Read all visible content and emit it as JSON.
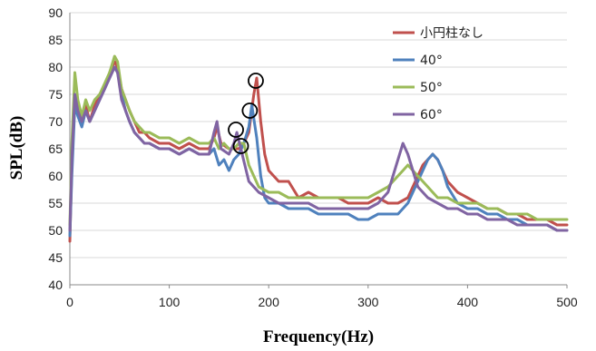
{
  "chart_data": {
    "type": "line",
    "title": "",
    "xlabel": "Frequency(Hz)",
    "ylabel": "SPL(dB)",
    "xlim": [
      0,
      500
    ],
    "ylim": [
      40,
      90
    ],
    "xticks": [
      0,
      100,
      200,
      300,
      400,
      500
    ],
    "yticks": [
      40,
      45,
      50,
      55,
      60,
      65,
      70,
      75,
      80,
      85,
      90
    ],
    "grid": "horizontal",
    "legend_position": "top-right",
    "series": [
      {
        "name": "小円柱なし",
        "color": "#c0504d",
        "x": [
          0,
          2,
          5,
          8,
          12,
          16,
          20,
          25,
          30,
          35,
          40,
          45,
          48,
          52,
          56,
          60,
          65,
          70,
          75,
          80,
          90,
          100,
          110,
          120,
          130,
          140,
          145,
          148,
          152,
          160,
          170,
          175,
          180,
          185,
          188,
          192,
          196,
          200,
          205,
          210,
          220,
          230,
          240,
          250,
          260,
          270,
          280,
          290,
          300,
          310,
          320,
          330,
          340,
          345,
          350,
          355,
          360,
          365,
          370,
          375,
          380,
          390,
          400,
          410,
          420,
          430,
          440,
          450,
          460,
          470,
          480,
          490,
          500
        ],
        "y": [
          48,
          62,
          74,
          72,
          70,
          73,
          70,
          73,
          75,
          76,
          79,
          81,
          80,
          76,
          74,
          72,
          70,
          68,
          68,
          67,
          66,
          66,
          65,
          66,
          65,
          65,
          67,
          69,
          66,
          65,
          65,
          66,
          68,
          75,
          78,
          70,
          64,
          61,
          60,
          59,
          59,
          56,
          57,
          56,
          56,
          56,
          55,
          55,
          55,
          56,
          55,
          55,
          56,
          58,
          60,
          62,
          63,
          64,
          63,
          61,
          59,
          57,
          56,
          55,
          54,
          54,
          53,
          53,
          52,
          52,
          52,
          51,
          51
        ]
      },
      {
        "name": "40°",
        "color": "#4f81bd",
        "x": [
          0,
          2,
          5,
          8,
          12,
          16,
          20,
          25,
          30,
          35,
          40,
          45,
          48,
          52,
          56,
          60,
          65,
          70,
          75,
          80,
          90,
          100,
          110,
          120,
          130,
          140,
          145,
          150,
          155,
          160,
          165,
          170,
          175,
          180,
          183,
          188,
          192,
          196,
          200,
          210,
          220,
          230,
          240,
          250,
          260,
          270,
          280,
          290,
          300,
          310,
          320,
          330,
          340,
          345,
          350,
          355,
          360,
          365,
          370,
          375,
          380,
          390,
          400,
          410,
          420,
          430,
          440,
          450,
          460,
          470,
          480,
          490,
          500
        ],
        "y": [
          49,
          60,
          73,
          71,
          69,
          72,
          70,
          72,
          74,
          76,
          78,
          80,
          79,
          75,
          72,
          70,
          68,
          67,
          66,
          66,
          65,
          65,
          64,
          65,
          64,
          64,
          65,
          62,
          63,
          61,
          63,
          64,
          66,
          69,
          73,
          67,
          60,
          56,
          55,
          55,
          54,
          54,
          54,
          53,
          53,
          53,
          53,
          52,
          52,
          53,
          53,
          53,
          55,
          57,
          59,
          61,
          63,
          64,
          63,
          61,
          58,
          55,
          54,
          54,
          53,
          53,
          52,
          52,
          51,
          51,
          51,
          50,
          50
        ]
      },
      {
        "name": "50°",
        "color": "#9bbb59",
        "x": [
          0,
          2,
          5,
          8,
          12,
          16,
          20,
          25,
          30,
          35,
          40,
          45,
          48,
          52,
          56,
          60,
          65,
          70,
          75,
          80,
          90,
          100,
          110,
          120,
          130,
          140,
          145,
          150,
          155,
          160,
          165,
          170,
          175,
          180,
          190,
          200,
          210,
          220,
          230,
          240,
          250,
          260,
          270,
          280,
          290,
          300,
          310,
          320,
          330,
          335,
          340,
          345,
          350,
          355,
          360,
          365,
          370,
          380,
          390,
          400,
          410,
          420,
          430,
          440,
          450,
          460,
          470,
          480,
          490,
          500
        ],
        "y": [
          51,
          66,
          79,
          74,
          71,
          74,
          72,
          74,
          75,
          77,
          79,
          82,
          81,
          76,
          74,
          72,
          70,
          69,
          68,
          68,
          67,
          67,
          66,
          67,
          66,
          66,
          67,
          65,
          66,
          65,
          65,
          66,
          66,
          62,
          58,
          57,
          57,
          56,
          56,
          56,
          56,
          56,
          56,
          56,
          56,
          56,
          57,
          58,
          60,
          61,
          62,
          61,
          60,
          59,
          58,
          57,
          56,
          56,
          55,
          55,
          55,
          54,
          54,
          53,
          53,
          53,
          52,
          52,
          52,
          52
        ]
      },
      {
        "name": "60°",
        "color": "#8064a2",
        "x": [
          0,
          2,
          5,
          8,
          12,
          16,
          20,
          25,
          30,
          35,
          40,
          45,
          48,
          52,
          56,
          60,
          65,
          70,
          75,
          80,
          90,
          100,
          110,
          120,
          130,
          140,
          145,
          148,
          152,
          160,
          165,
          168,
          172,
          176,
          180,
          190,
          200,
          210,
          220,
          230,
          240,
          250,
          260,
          270,
          280,
          290,
          300,
          310,
          320,
          325,
          330,
          335,
          340,
          345,
          350,
          360,
          370,
          380,
          390,
          400,
          410,
          420,
          430,
          440,
          450,
          460,
          470,
          480,
          490,
          500
        ],
        "y": [
          50,
          63,
          75,
          72,
          70,
          72,
          70,
          72,
          74,
          76,
          78,
          80,
          79,
          74,
          72,
          70,
          68,
          67,
          66,
          66,
          65,
          65,
          64,
          65,
          64,
          64,
          68,
          70,
          65,
          64,
          66,
          68,
          65,
          62,
          59,
          57,
          56,
          55,
          55,
          55,
          55,
          54,
          54,
          54,
          54,
          54,
          54,
          55,
          57,
          60,
          63,
          66,
          64,
          61,
          58,
          56,
          55,
          54,
          54,
          53,
          53,
          52,
          52,
          52,
          51,
          51,
          51,
          51,
          50,
          50
        ]
      }
    ],
    "annotations": [
      {
        "type": "circle",
        "x": 187,
        "y": 77.5
      },
      {
        "type": "circle",
        "x": 181,
        "y": 72
      },
      {
        "type": "circle",
        "x": 167,
        "y": 68.5
      },
      {
        "type": "circle",
        "x": 172,
        "y": 65.5
      }
    ]
  }
}
